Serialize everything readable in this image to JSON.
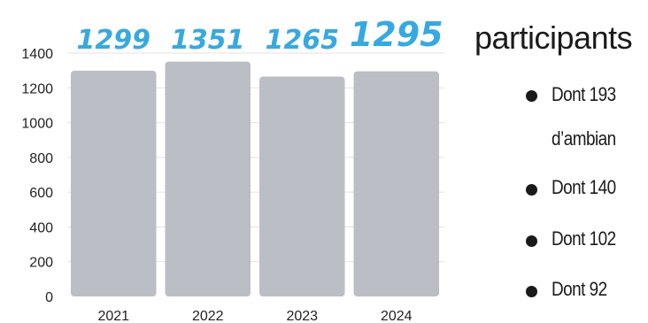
{
  "chart_data": {
    "type": "bar",
    "categories": [
      "2021",
      "2022",
      "2023",
      "2024"
    ],
    "values": [
      1299,
      1351,
      1265,
      1295
    ],
    "data_labels": [
      "1299",
      "1351",
      "1265",
      "1295"
    ],
    "ylim": [
      0,
      1400
    ],
    "yticks": [
      "0",
      "200",
      "400",
      "600",
      "800",
      "1000",
      "1200",
      "1400"
    ],
    "title": "",
    "xlabel": "",
    "ylabel": "",
    "grid": true,
    "bar_color": "#bbbec4",
    "label_color": "#36a9e1",
    "grid_color": "#e3e3e3"
  },
  "side_panel": {
    "title": "participants",
    "bullets": [
      "Dont 193",
      "d’ambian",
      "Dont 140",
      "Dont 102",
      "Dont 92"
    ]
  }
}
